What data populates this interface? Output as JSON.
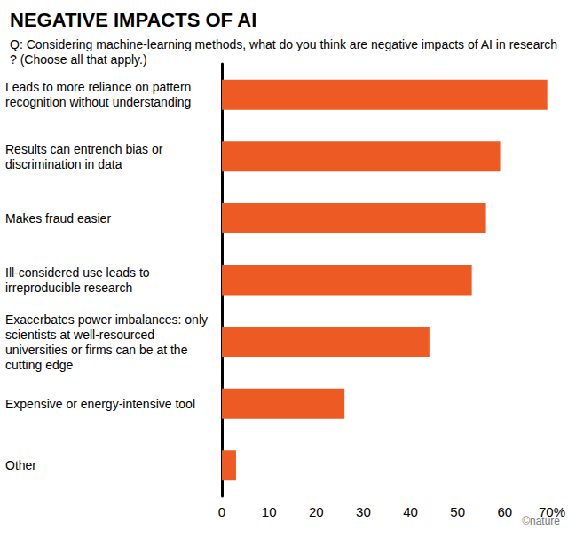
{
  "chart_data": {
    "type": "bar",
    "title": "NEGATIVE IMPACTS OF AI",
    "subtitle": "Q: Considering machine-learning methods, what do you think are negative impacts of AI in research? (Choose all that apply.)",
    "annotations": [
      "©nature"
    ],
    "orientation": "horizontal",
    "categories": [
      "Leads to more reliance on pattern recognition without understanding",
      "Results can entrench bias or discrimination in data",
      "Makes fraud easier",
      "Ill-considered use leads to irreproducible research",
      "Exacerbates power imbalances: only scientists at well-resourced universities or firms can be at the cutting edge",
      "Expensive or energy-intensive tool",
      "Other"
    ],
    "values": [
      69,
      59,
      56,
      53,
      44,
      26,
      3
    ],
    "color": "#ee5a24",
    "xlim": [
      0,
      70
    ],
    "xticks": [
      0,
      10,
      20,
      30,
      40,
      50,
      60,
      {
        "value": 70,
        "label": "70%"
      }
    ],
    "grid": false
  }
}
